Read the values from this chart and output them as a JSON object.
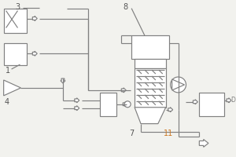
{
  "bg_color": "#f2f2ee",
  "lc": "#808080",
  "lw": 0.85,
  "label_11_color": "#cc7722",
  "label_default_color": "#555555"
}
